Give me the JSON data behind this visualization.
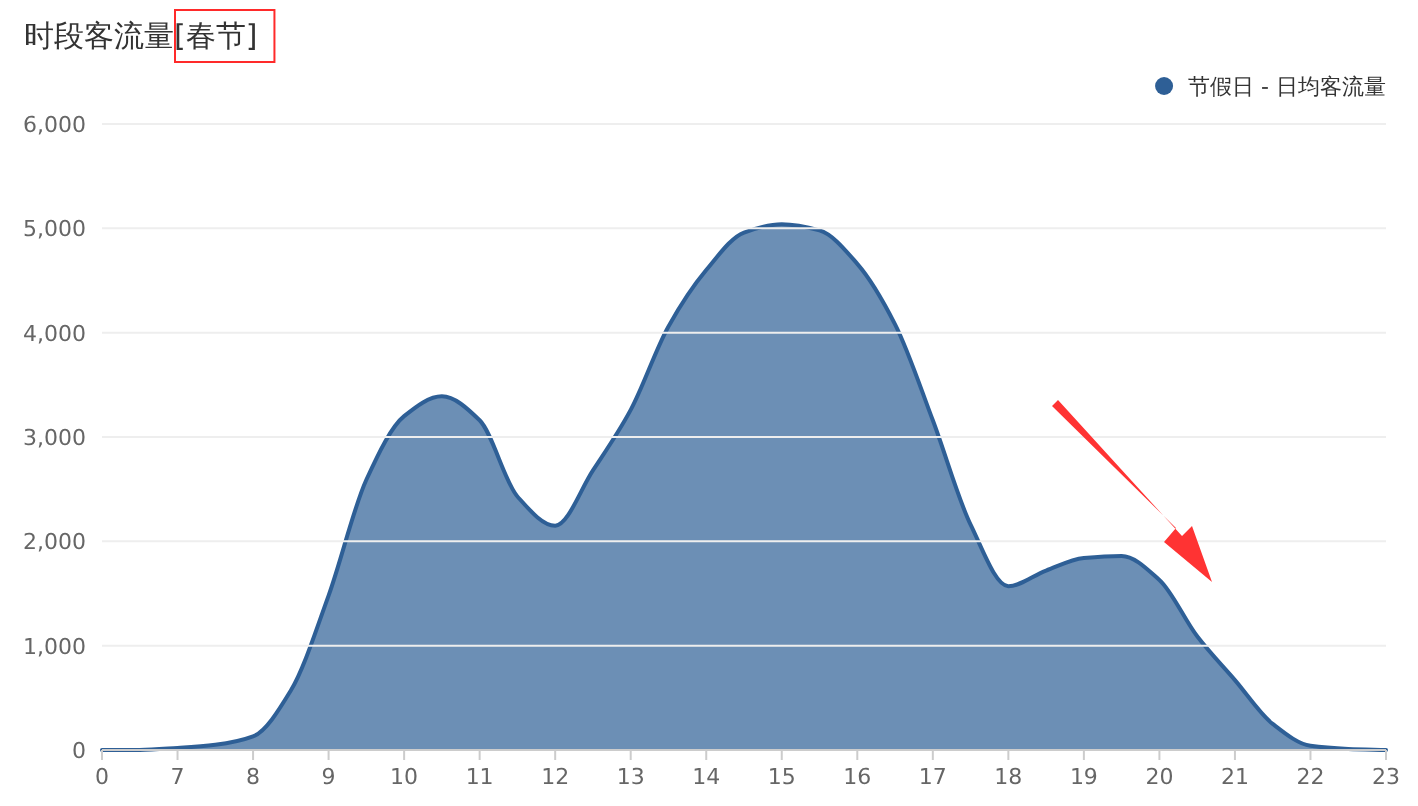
{
  "chart_data": {
    "type": "area",
    "title": "时段客流量[春节]",
    "categories": [
      "0",
      null,
      "7",
      null,
      "8",
      null,
      "9",
      null,
      "10",
      null,
      "11",
      null,
      "12",
      null,
      "13",
      null,
      "14",
      null,
      "15",
      null,
      "16",
      null,
      "17",
      null,
      "18",
      null,
      "19",
      null,
      "20",
      null,
      "21",
      null,
      "22",
      null,
      "23"
    ],
    "series": [
      {
        "name": "节假日 - 日均客流量",
        "color": "#2e5f96",
        "values": [
          0,
          0,
          20,
          50,
          130,
          570,
          1480,
          2590,
          3200,
          3390,
          3160,
          2430,
          2150,
          2680,
          3260,
          4060,
          4600,
          4960,
          5040,
          4980,
          4660,
          4080,
          3160,
          2160,
          1570,
          1720,
          1840,
          1860,
          1630,
          1090,
          670,
          250,
          40,
          10,
          0
        ]
      }
    ],
    "ylim": [
      0,
      6000
    ],
    "yticks": [
      0,
      {
        "value": 1000,
        "label": "1,000"
      },
      {
        "value": 2000,
        "label": "2,000"
      },
      {
        "value": 3000,
        "label": "3,000"
      },
      {
        "value": 4000,
        "label": "4,000"
      },
      {
        "value": 5000,
        "label": "5,000"
      },
      {
        "value": 6000,
        "label": "6,000"
      }
    ],
    "grid": "y",
    "legend": "top right"
  }
}
